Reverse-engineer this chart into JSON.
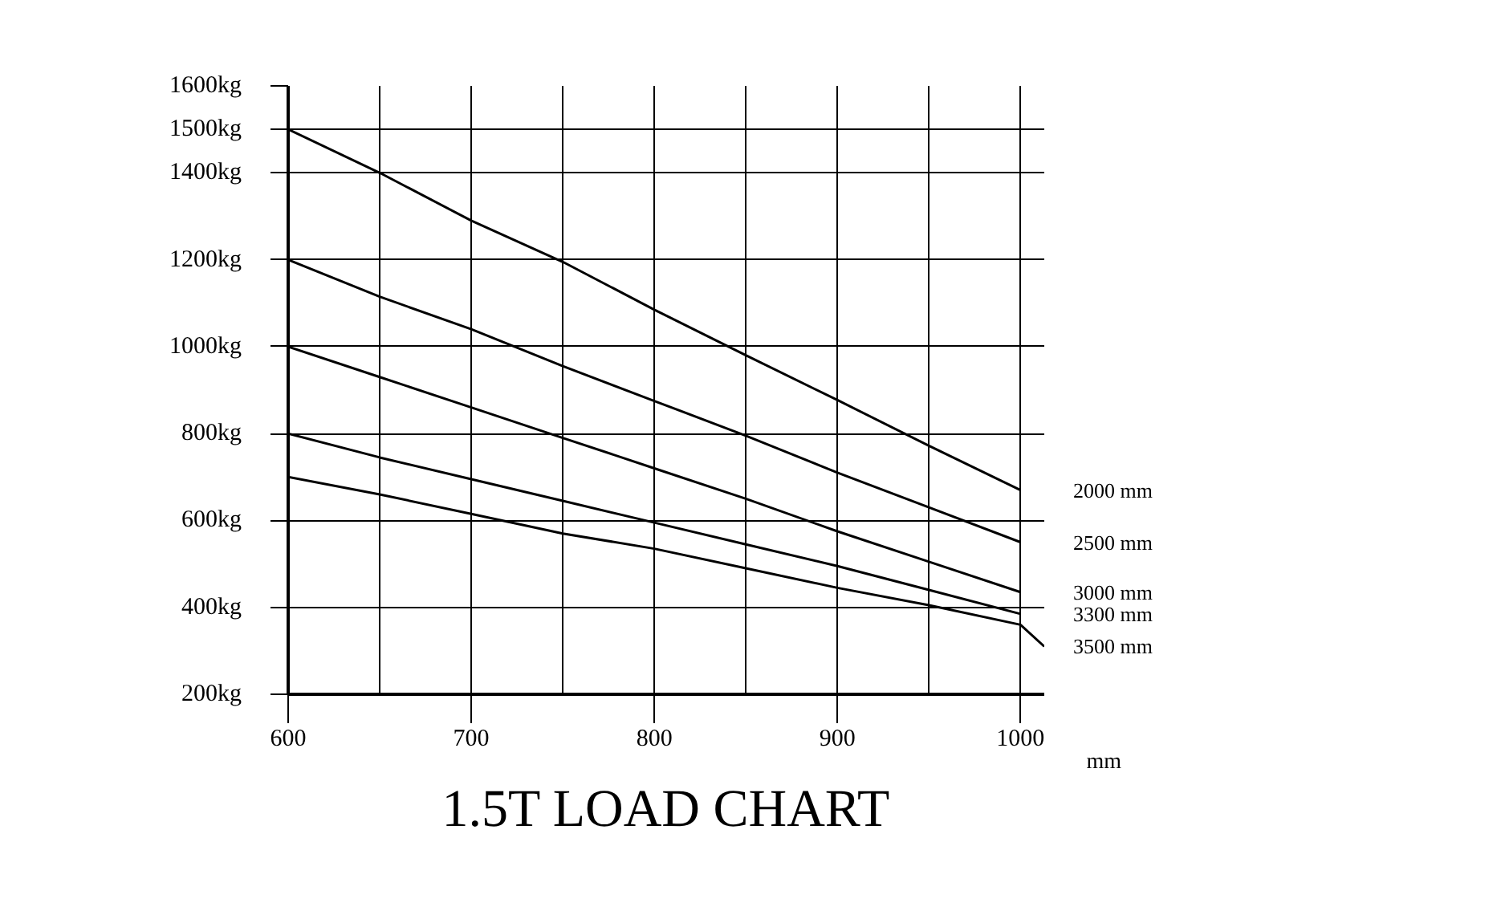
{
  "chart_data": {
    "type": "line",
    "title": "1.5T LOAD CHART",
    "xlabel": "mm",
    "x": [
      600,
      650,
      700,
      750,
      800,
      850,
      900,
      950,
      1000
    ],
    "series": [
      {
        "name": "2000 mm",
        "color": "#000000",
        "values": [
          1500,
          1400,
          1290,
          1195,
          1085,
          980,
          877,
          772,
          670
        ]
      },
      {
        "name": "2500 mm",
        "color": "#000000",
        "values": [
          1200,
          1115,
          1040,
          955,
          875,
          795,
          710,
          630,
          550
        ]
      },
      {
        "name": "3000 mm",
        "color": "#000000",
        "values": [
          1000,
          930,
          860,
          790,
          720,
          650,
          575,
          505,
          435
        ]
      },
      {
        "name": "3300 mm",
        "color": "#000000",
        "values": [
          800,
          745,
          695,
          645,
          595,
          545,
          495,
          440,
          385
        ]
      },
      {
        "name": "3500 mm",
        "color": "#000000",
        "x": [
          600,
          650,
          700,
          750,
          800,
          850,
          900,
          950,
          1000,
          1013
        ],
        "values": [
          700,
          660,
          615,
          570,
          535,
          490,
          445,
          405,
          360,
          310
        ]
      }
    ],
    "xlim": [
      600,
      1013
    ],
    "ylim": [
      200,
      1600
    ],
    "xticks": [
      600,
      {
        "value": 650,
        "label": null
      },
      700,
      {
        "value": 750,
        "label": null
      },
      800,
      {
        "value": 850,
        "label": null
      },
      900,
      {
        "value": 950,
        "label": null
      },
      1000
    ],
    "yticks": [
      {
        "value": 200,
        "label": "200kg"
      },
      {
        "value": 400,
        "label": "400kg"
      },
      {
        "value": 600,
        "label": "600kg"
      },
      {
        "value": 800,
        "label": "800kg"
      },
      {
        "value": 1000,
        "label": "1000kg"
      },
      {
        "value": 1200,
        "label": "1200kg"
      },
      {
        "value": 1400,
        "label": "1400kg"
      },
      {
        "value": 1500,
        "label": "1500kg"
      },
      {
        "value": 1600,
        "label": "1600kg"
      }
    ],
    "grid": true,
    "marker": "none",
    "line_style": "solid"
  }
}
